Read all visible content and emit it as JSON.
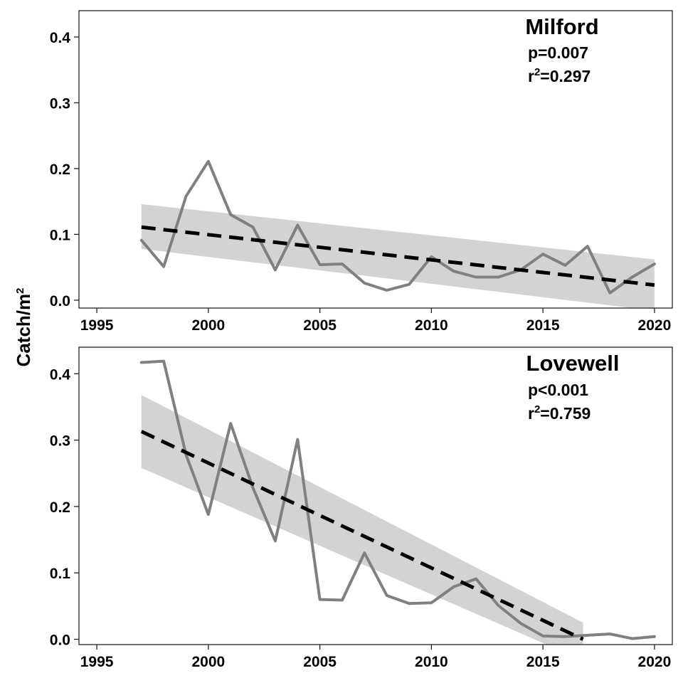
{
  "ylabel": {
    "text": "Catch/m",
    "sup": "2"
  },
  "colors": {
    "observed": "#808080",
    "trend": "#000000",
    "band": "#d3d3d3"
  },
  "chart_data": [
    {
      "type": "line",
      "title": "Milford",
      "stats": {
        "p": "p=0.007",
        "r2_prefix": "r",
        "r2_sup": "2",
        "r2_value": "=0.297"
      },
      "xlabel": "",
      "ylabel": "Catch/m2",
      "xlim": [
        1994.2,
        2020.8
      ],
      "ylim": [
        -0.012,
        0.44
      ],
      "xticks": [
        1995,
        2000,
        2005,
        2010,
        2015,
        2020
      ],
      "yticks": [
        0.0,
        0.1,
        0.2,
        0.3,
        0.4
      ],
      "ytick_labels": [
        "0.0",
        "0.1",
        "0.2",
        "0.3",
        "0.4"
      ],
      "grid": false,
      "series": [
        {
          "role": "observed",
          "x": [
            1997,
            1998,
            1999,
            2000,
            2001,
            2002,
            2003,
            2004,
            2005,
            2006,
            2007,
            2008,
            2009,
            2010,
            2011,
            2012,
            2013,
            2014,
            2015,
            2016,
            2017,
            2018,
            2019,
            2020
          ],
          "y": [
            0.091,
            0.051,
            0.158,
            0.211,
            0.13,
            0.111,
            0.046,
            0.114,
            0.054,
            0.055,
            0.026,
            0.015,
            0.024,
            0.066,
            0.044,
            0.035,
            0.035,
            0.046,
            0.07,
            0.053,
            0.082,
            0.011,
            0.035,
            0.055
          ]
        },
        {
          "role": "trend",
          "x": [
            1997,
            2020
          ],
          "y": [
            0.111,
            0.023
          ]
        },
        {
          "role": "ci",
          "x": [
            1997,
            2020
          ],
          "upper": [
            0.146,
            0.062
          ],
          "lower": [
            0.078,
            -0.016
          ]
        }
      ]
    },
    {
      "type": "line",
      "title": "Lovewell",
      "stats": {
        "p": "p<0.001",
        "r2_prefix": "r",
        "r2_sup": "2",
        "r2_value": "=0.759"
      },
      "xlabel": "",
      "ylabel": "Catch/m2",
      "xlim": [
        1994.2,
        2020.8
      ],
      "ylim": [
        -0.008,
        0.44
      ],
      "xticks": [
        1995,
        2000,
        2005,
        2010,
        2015,
        2020
      ],
      "yticks": [
        0.0,
        0.1,
        0.2,
        0.3,
        0.4
      ],
      "ytick_labels": [
        "0.0",
        "0.1",
        "0.2",
        "0.3",
        "0.4"
      ],
      "grid": false,
      "series": [
        {
          "role": "observed",
          "x": [
            1997,
            1998,
            1999,
            2000,
            2001,
            2002,
            2003,
            2004,
            2005,
            2006,
            2007,
            2008,
            2009,
            2010,
            2011,
            2012,
            2013,
            2014,
            2015,
            2016,
            2017,
            2018,
            2019,
            2020
          ],
          "y": [
            0.417,
            0.419,
            0.278,
            0.188,
            0.325,
            0.228,
            0.148,
            0.301,
            0.06,
            0.059,
            0.13,
            0.066,
            0.054,
            0.055,
            0.079,
            0.091,
            0.051,
            0.024,
            0.005,
            0.004,
            0.006,
            0.008,
            0.001,
            0.004
          ]
        },
        {
          "role": "trend",
          "x": [
            1997,
            2016.8
          ],
          "y": [
            0.313,
            0.0
          ]
        },
        {
          "role": "ci",
          "x": [
            1997,
            2016.8
          ],
          "upper": [
            0.368,
            0.025
          ],
          "lower": [
            0.258,
            -0.032
          ]
        }
      ]
    }
  ]
}
